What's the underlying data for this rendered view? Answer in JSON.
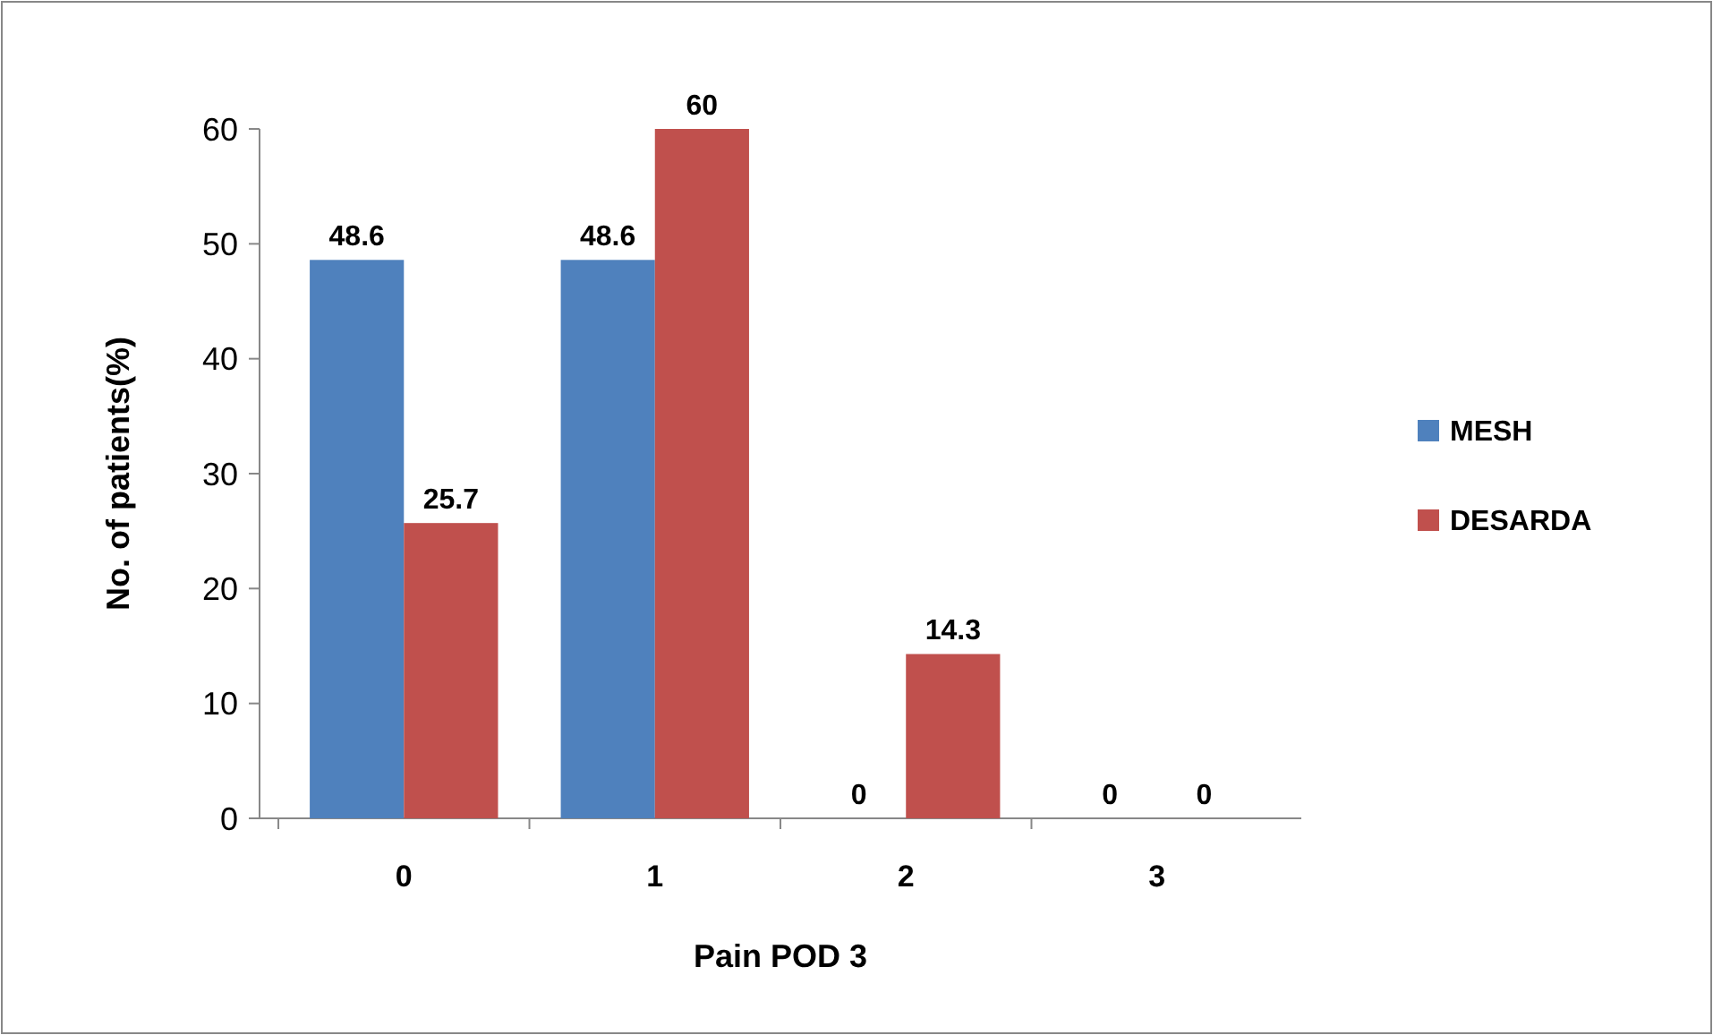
{
  "chart_data": {
    "type": "bar",
    "xlabel": "Pain POD 3",
    "ylabel": "No. of patients(%)",
    "categories": [
      "0",
      "1",
      "2",
      "3"
    ],
    "series": [
      {
        "name": "MESH",
        "color": "#4f81bd",
        "values": [
          48.6,
          48.6,
          0,
          0
        ]
      },
      {
        "name": "DESARDA",
        "color": "#c0504d",
        "values": [
          25.7,
          60,
          14.3,
          0
        ]
      }
    ],
    "ylim": [
      0,
      60
    ],
    "yticks": [
      0,
      10,
      20,
      30,
      40,
      50,
      60
    ],
    "data_labels": true,
    "legend": "right",
    "grid": false
  }
}
